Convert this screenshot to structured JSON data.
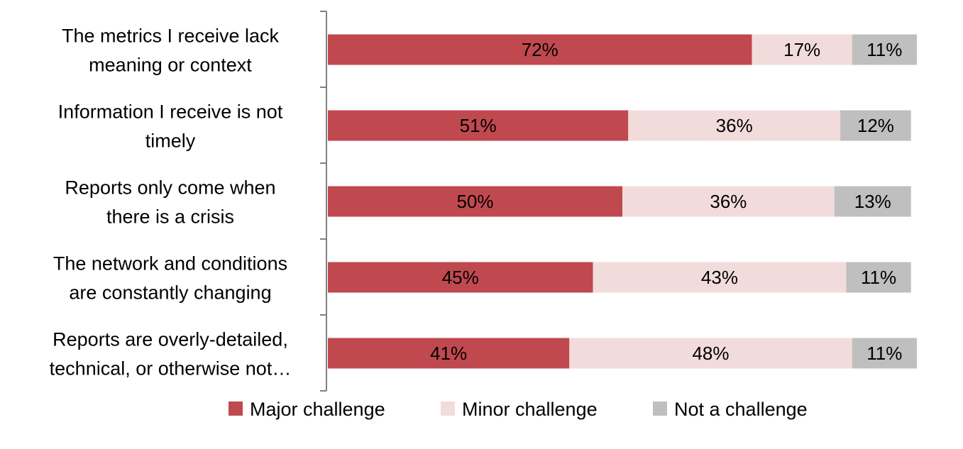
{
  "chart_data": {
    "type": "bar",
    "orientation": "horizontal",
    "stacked": true,
    "categories": [
      [
        "The metrics I receive lack",
        "meaning or context"
      ],
      [
        "Information I receive is not",
        "timely"
      ],
      [
        "Reports only come when",
        "there is a crisis"
      ],
      [
        "The network and conditions",
        "are constantly changing"
      ],
      [
        "Reports are overly-detailed,",
        "technical, or otherwise not…"
      ]
    ],
    "series": [
      {
        "name": "Major challenge",
        "color": "#c0494f",
        "values": [
          72,
          51,
          50,
          45,
          41
        ],
        "labels": [
          "72%",
          "51%",
          "50%",
          "45%",
          "41%"
        ]
      },
      {
        "name": "Minor challenge",
        "color": "#f2dcdb",
        "values": [
          17,
          36,
          36,
          43,
          48
        ],
        "labels": [
          "17%",
          "36%",
          "36%",
          "43%",
          "48%"
        ]
      },
      {
        "name": "Not a challenge",
        "color": "#bfbfbf",
        "values": [
          11,
          12,
          13,
          11,
          11
        ],
        "labels": [
          "11%",
          "12%",
          "13%",
          "11%",
          "11%"
        ]
      }
    ],
    "xlim": [
      0,
      100
    ],
    "grid": false,
    "legend_position": "bottom"
  }
}
